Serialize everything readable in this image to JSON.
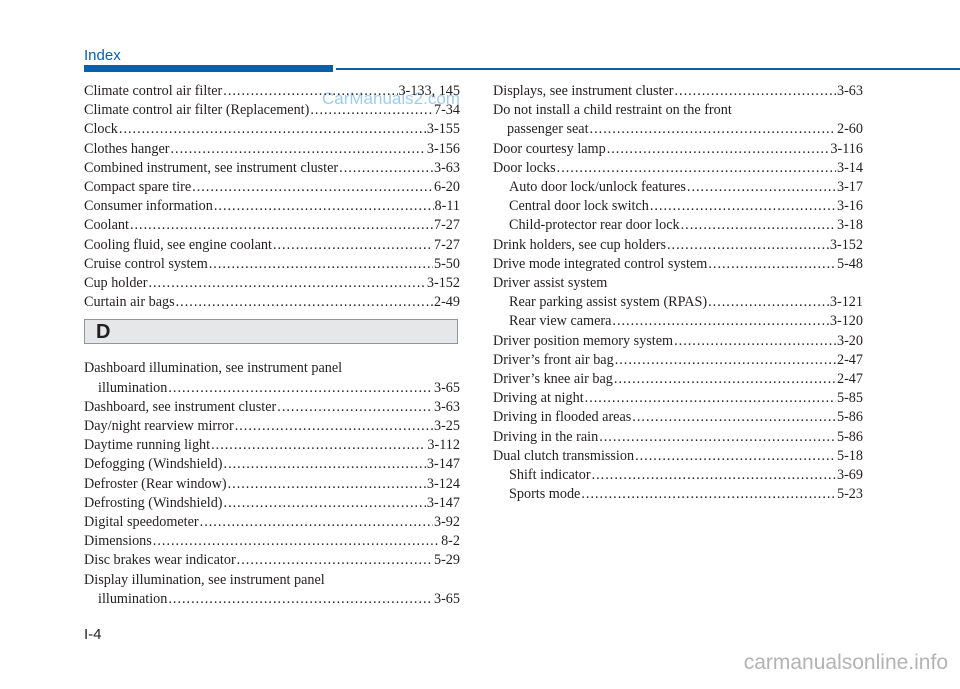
{
  "header": {
    "title": "Index"
  },
  "watermark_top": "CarManuals2.com",
  "watermark_bottom": "carmanualsonline.info",
  "page_number": "I-4",
  "left_column": {
    "entries_c": [
      {
        "text": "Climate control air filter",
        "page": "3-133, 145"
      },
      {
        "text": "Climate control air filter (Replacement)",
        "page": "7-34"
      },
      {
        "text": "Clock",
        "page": "3-155"
      },
      {
        "text": "Clothes hanger",
        "page": "3-156"
      },
      {
        "text": "Combined instrument, see instrument cluster",
        "page": "3-63"
      },
      {
        "text": "Compact spare tire",
        "page": "6-20"
      },
      {
        "text": "Consumer information",
        "page": "8-11"
      },
      {
        "text": "Coolant",
        "page": "7-27"
      },
      {
        "text": "Cooling fluid, see engine coolant",
        "page": "7-27"
      },
      {
        "text": "Cruise control system",
        "page": "5-50"
      },
      {
        "text": "Cup holder",
        "page": "3-152"
      },
      {
        "text": "Curtain air bags",
        "page": "2-49"
      }
    ],
    "section_letter": "D",
    "entry_dashboard_illum": {
      "line1": "Dashboard illumination, see instrument panel",
      "text": "illumination",
      "page": "3-65"
    },
    "entries_d": [
      {
        "text": "Dashboard, see instrument cluster",
        "page": "3-63"
      },
      {
        "text": "Day/night rearview mirror",
        "page": "3-25"
      },
      {
        "text": "Daytime running light",
        "page": "3-112"
      },
      {
        "text": "Defogging (Windshield)",
        "page": "3-147"
      },
      {
        "text": "Defroster (Rear window)",
        "page": "3-124"
      },
      {
        "text": "Defrosting (Windshield)",
        "page": "3-147"
      },
      {
        "text": "Digital speedometer",
        "page": "3-92"
      },
      {
        "text": "Dimensions",
        "page": "8-2"
      },
      {
        "text": "Disc brakes wear indicator",
        "page": "5-29"
      }
    ],
    "entry_display_illum": {
      "line1": "Display illumination, see instrument panel",
      "text": "illumination",
      "page": "3-65"
    }
  },
  "right_column": {
    "displays": {
      "text": "Displays, see instrument cluster",
      "page": "3-63"
    },
    "child_restraint": {
      "line1": "Do not install a child restraint on the front",
      "text": "passenger seat",
      "page": "2-60"
    },
    "door_courtesy": {
      "text": "Door courtesy lamp",
      "page": "3-116"
    },
    "door_locks": {
      "text": "Door locks",
      "page": "3-14"
    },
    "door_locks_sub": [
      {
        "text": "Auto door lock/unlock features",
        "page": "3-17"
      },
      {
        "text": "Central door lock switch",
        "page": "3-16"
      },
      {
        "text": "Child-protector rear door lock",
        "page": "3-18"
      }
    ],
    "drink_holders": {
      "text": "Drink holders, see cup holders",
      "page": "3-152"
    },
    "drive_mode": {
      "text": "Drive mode integrated control system",
      "page": "5-48"
    },
    "driver_assist": {
      "line1": "Driver assist system"
    },
    "driver_assist_sub": [
      {
        "text": "Rear parking assist system (RPAS)",
        "page": "3-121"
      },
      {
        "text": "Rear view camera",
        "page": "3-120"
      }
    ],
    "entries_after": [
      {
        "text": "Driver position memory system",
        "page": "3-20"
      },
      {
        "text": "Driver’s front air bag",
        "page": "2-47"
      },
      {
        "text": "Driver’s knee air bag",
        "page": "2-47"
      },
      {
        "text": "Driving at night",
        "page": "5-85"
      },
      {
        "text": "Driving in flooded areas",
        "page": "5-86"
      },
      {
        "text": "Driving in the rain",
        "page": "5-86"
      },
      {
        "text": "Dual clutch transmission",
        "page": "5-18"
      }
    ],
    "dct_sub": [
      {
        "text": "Shift indicator",
        "page": "3-69"
      },
      {
        "text": "Sports mode",
        "page": "5-23"
      }
    ]
  }
}
